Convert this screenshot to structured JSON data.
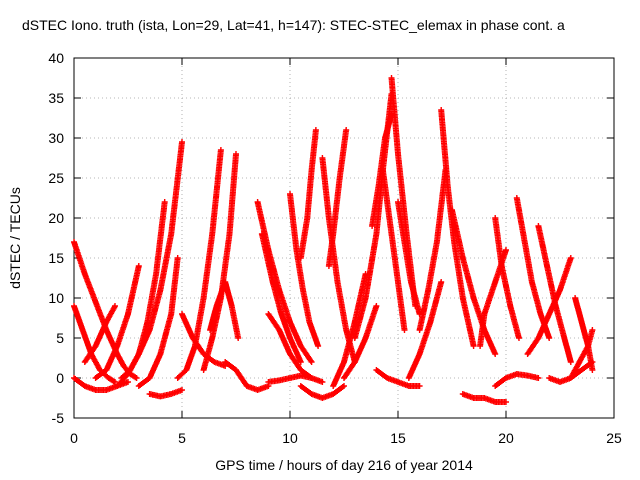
{
  "chart_data": {
    "type": "scatter",
    "title": "dSTEC Iono. truth (ista, Lon=29, Lat=41, h=147): STEC-STEC_elemax in phase cont. a",
    "xlabel": "GPS time / hours of day 216 of year 2014",
    "ylabel": "dSTEC  / TECUs",
    "xlim": [
      0,
      25
    ],
    "ylim": [
      -5,
      40
    ],
    "xticks": [
      0,
      5,
      10,
      15,
      20,
      25
    ],
    "yticks": [
      -5,
      0,
      5,
      10,
      15,
      20,
      25,
      30,
      35,
      40
    ],
    "grid": true,
    "marker": "+",
    "color": "#ff0000",
    "series": [
      {
        "x": [
          0.0,
          0.5,
          1.0,
          1.5,
          2.0,
          2.3,
          2.6,
          2.9
        ],
        "y": [
          17,
          13,
          9.5,
          6,
          3,
          1.5,
          0.5,
          0
        ]
      },
      {
        "x": [
          0.0,
          0.4,
          0.8,
          1.2,
          1.6,
          1.9
        ],
        "y": [
          9,
          6,
          3,
          1,
          0,
          -0.5
        ]
      },
      {
        "x": [
          0.0,
          0.5,
          1.0,
          1.5,
          2.0,
          2.5
        ],
        "y": [
          0,
          -1,
          -1.5,
          -1.5,
          -1,
          -0.5
        ]
      },
      {
        "x": [
          0.5,
          1.0,
          1.5,
          1.9
        ],
        "y": [
          2,
          4,
          7,
          9
        ]
      },
      {
        "x": [
          1.0,
          1.5,
          2.0,
          2.5,
          3.0
        ],
        "y": [
          0,
          1,
          4,
          8,
          14
        ]
      },
      {
        "x": [
          2.2,
          2.6,
          3.0,
          3.5,
          4.0,
          4.5,
          5.0
        ],
        "y": [
          0,
          1,
          3,
          6,
          11,
          18,
          29.5
        ]
      },
      {
        "x": [
          2.0,
          2.5,
          3.0,
          3.4,
          3.8,
          4.2
        ],
        "y": [
          -1,
          0.5,
          3,
          7,
          13,
          22
        ]
      },
      {
        "x": [
          3.0,
          3.5,
          4.0,
          4.5,
          4.8
        ],
        "y": [
          -1,
          0,
          3,
          8,
          15
        ]
      },
      {
        "x": [
          3.5,
          4.0,
          4.5,
          5.0
        ],
        "y": [
          -2,
          -2.3,
          -2,
          -1.5
        ]
      },
      {
        "x": [
          5.0,
          5.5,
          6.0,
          6.5,
          7.0
        ],
        "y": [
          8,
          5,
          3,
          2,
          1.5
        ]
      },
      {
        "x": [
          4.8,
          5.2,
          5.6,
          6.0,
          6.4,
          6.8
        ],
        "y": [
          0,
          1,
          4,
          10,
          18,
          28.5
        ]
      },
      {
        "x": [
          6.0,
          6.4,
          6.8,
          7.2,
          7.5
        ],
        "y": [
          1,
          5,
          10,
          18,
          28
        ]
      },
      {
        "x": [
          6.3,
          6.6,
          7.0,
          7.3,
          7.6
        ],
        "y": [
          6,
          9,
          12,
          9,
          5
        ]
      },
      {
        "x": [
          7.0,
          7.5,
          8.0,
          8.5,
          9.0
        ],
        "y": [
          2,
          1,
          -1,
          -1.5,
          -1
        ]
      },
      {
        "x": [
          8.5,
          9.0,
          9.5,
          10.0,
          10.5,
          11.0
        ],
        "y": [
          22,
          16,
          11,
          7,
          4,
          2
        ]
      },
      {
        "x": [
          8.7,
          9.2,
          9.6,
          10.0,
          10.5
        ],
        "y": [
          18,
          12,
          8,
          5,
          2
        ]
      },
      {
        "x": [
          9.0,
          9.5,
          10.0,
          10.5,
          11.0,
          11.5
        ],
        "y": [
          8,
          6,
          3,
          1,
          0,
          -0.5
        ]
      },
      {
        "x": [
          9.0,
          9.5,
          10.0,
          10.5,
          11.0
        ],
        "y": [
          -0.5,
          -0.3,
          0,
          0.3,
          0
        ]
      },
      {
        "x": [
          10.0,
          10.3,
          10.6,
          10.9,
          11.3
        ],
        "y": [
          23,
          16,
          11,
          7,
          4
        ]
      },
      {
        "x": [
          10.5,
          10.8,
          11.0,
          11.2
        ],
        "y": [
          15,
          20,
          26,
          31
        ]
      },
      {
        "x": [
          10.5,
          11.0,
          11.5,
          12.0,
          12.5
        ],
        "y": [
          -1,
          -2,
          -2.5,
          -2,
          -1
        ]
      },
      {
        "x": [
          11.5,
          11.8,
          12.2,
          12.6,
          13.0
        ],
        "y": [
          27.5,
          20,
          12,
          6,
          2
        ]
      },
      {
        "x": [
          11.8,
          12.0,
          12.3,
          12.6
        ],
        "y": [
          14,
          18,
          25,
          31
        ]
      },
      {
        "x": [
          12.0,
          12.5,
          13.0,
          13.5
        ],
        "y": [
          -1,
          2,
          7,
          13
        ]
      },
      {
        "x": [
          12.5,
          13.0,
          13.5,
          14.0
        ],
        "y": [
          0,
          2,
          5,
          9
        ]
      },
      {
        "x": [
          13.0,
          13.5,
          14.0,
          14.3,
          14.7
        ],
        "y": [
          5,
          10,
          18,
          26,
          35.5
        ]
      },
      {
        "x": [
          13.8,
          14.1,
          14.4,
          14.7
        ],
        "y": [
          19,
          24,
          30,
          33
        ]
      },
      {
        "x": [
          14.3,
          14.7,
          15.0,
          15.3
        ],
        "y": [
          26,
          18,
          12,
          6
        ]
      },
      {
        "x": [
          14.7,
          15.0,
          15.4,
          15.8
        ],
        "y": [
          37.5,
          28,
          18,
          9
        ]
      },
      {
        "x": [
          15.0,
          15.3,
          15.6,
          16.0
        ],
        "y": [
          22,
          17,
          12,
          8
        ]
      },
      {
        "x": [
          14.0,
          14.5,
          15.0,
          15.5,
          16.0
        ],
        "y": [
          1,
          0,
          -0.5,
          -1,
          -1
        ]
      },
      {
        "x": [
          15.5,
          16.0,
          16.5,
          17.0
        ],
        "y": [
          0,
          3,
          7,
          12
        ]
      },
      {
        "x": [
          16.0,
          16.4,
          16.8,
          17.2
        ],
        "y": [
          6,
          11,
          17,
          26
        ]
      },
      {
        "x": [
          17.0,
          17.3,
          17.6,
          18.0,
          18.5
        ],
        "y": [
          33.5,
          24,
          17,
          10,
          4
        ]
      },
      {
        "x": [
          17.5,
          18.0,
          18.5,
          19.0,
          19.5
        ],
        "y": [
          21,
          15,
          10,
          6,
          3
        ]
      },
      {
        "x": [
          18.0,
          18.5,
          19.0,
          19.5,
          20.0
        ],
        "y": [
          -2,
          -2.5,
          -2.5,
          -3,
          -3
        ]
      },
      {
        "x": [
          18.8,
          19.0,
          19.5,
          20.0
        ],
        "y": [
          4,
          8,
          12,
          16
        ]
      },
      {
        "x": [
          19.5,
          19.8,
          20.2,
          20.6
        ],
        "y": [
          20,
          14,
          9,
          5
        ]
      },
      {
        "x": [
          19.5,
          20.0,
          20.5,
          21.0,
          21.5
        ],
        "y": [
          -1,
          0,
          0.5,
          0.3,
          0
        ]
      },
      {
        "x": [
          20.5,
          20.8,
          21.2,
          21.6,
          22.0
        ],
        "y": [
          22.5,
          18,
          12,
          8,
          5
        ]
      },
      {
        "x": [
          21.5,
          21.9,
          22.3,
          22.7,
          23.0
        ],
        "y": [
          19,
          14,
          9,
          5,
          2
        ]
      },
      {
        "x": [
          21.0,
          21.5,
          22.0,
          22.5,
          23.0
        ],
        "y": [
          3,
          5,
          8,
          11,
          15
        ]
      },
      {
        "x": [
          22.0,
          22.5,
          23.0,
          23.5,
          24.0
        ],
        "y": [
          0,
          -0.5,
          0,
          1,
          2
        ]
      },
      {
        "x": [
          23.2,
          23.5,
          23.8,
          24.0
        ],
        "y": [
          10,
          7,
          4,
          1
        ]
      },
      {
        "x": [
          23.0,
          23.4,
          23.8,
          24.0
        ],
        "y": [
          0,
          2,
          4,
          6
        ]
      }
    ]
  }
}
